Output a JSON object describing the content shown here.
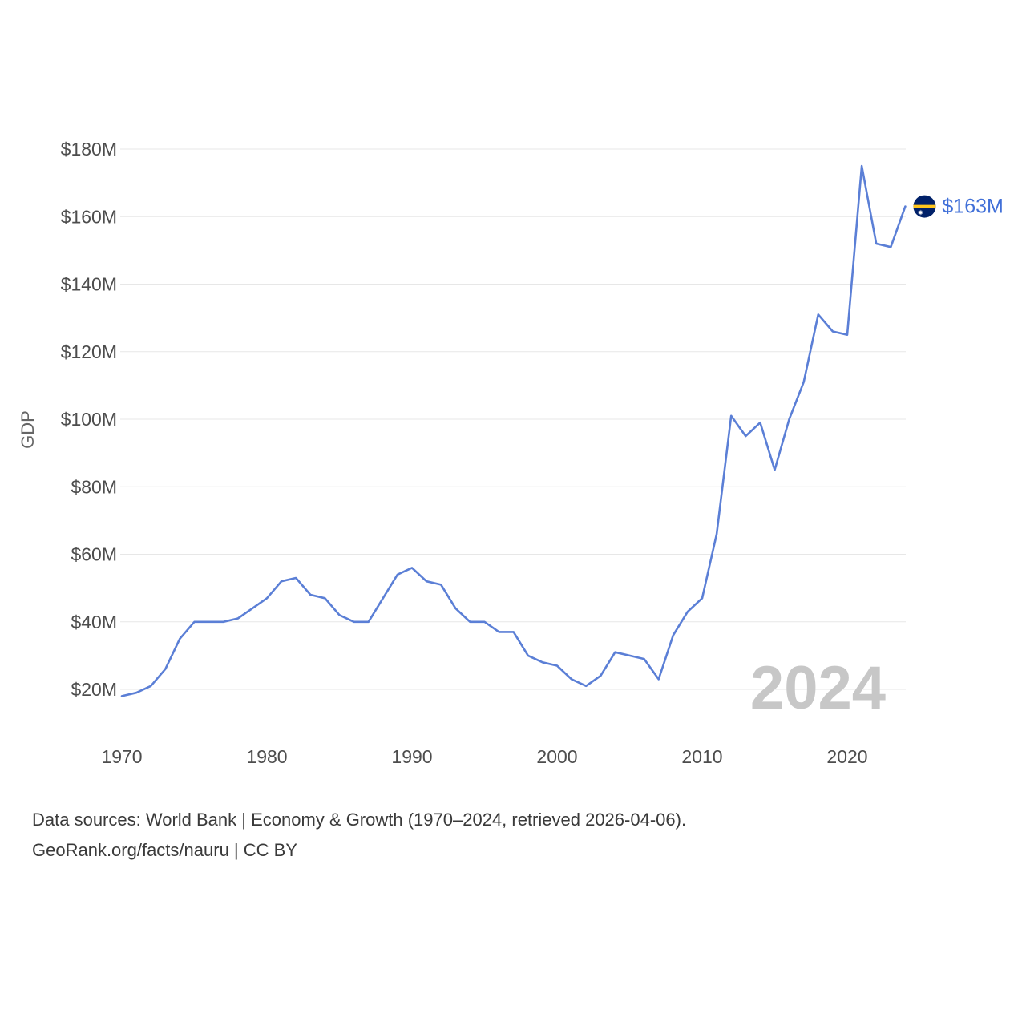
{
  "chart_data": {
    "type": "line",
    "title": "",
    "ylabel": "GDP",
    "xlabel": "",
    "series_name": "GDP of Nauru",
    "x": [
      1970,
      1971,
      1972,
      1973,
      1974,
      1975,
      1976,
      1977,
      1978,
      1979,
      1980,
      1981,
      1982,
      1983,
      1984,
      1985,
      1986,
      1987,
      1988,
      1989,
      1990,
      1991,
      1992,
      1993,
      1994,
      1995,
      1996,
      1997,
      1998,
      1999,
      2000,
      2001,
      2002,
      2003,
      2004,
      2005,
      2006,
      2007,
      2008,
      2009,
      2010,
      2011,
      2012,
      2013,
      2014,
      2015,
      2016,
      2017,
      2018,
      2019,
      2020,
      2021,
      2022,
      2023,
      2024
    ],
    "values": [
      18,
      19,
      21,
      26,
      35,
      40,
      40,
      40,
      41,
      44,
      47,
      52,
      53,
      48,
      47,
      42,
      40,
      40,
      47,
      54,
      56,
      52,
      51,
      44,
      40,
      40,
      37,
      37,
      30,
      28,
      27,
      23,
      21,
      24,
      31,
      30,
      29,
      23,
      36,
      43,
      47,
      66,
      101,
      95,
      99,
      85,
      100,
      111,
      131,
      126,
      125,
      175,
      152,
      151,
      163
    ],
    "unit": "M USD",
    "x_ticks": [
      1970,
      1980,
      1990,
      2000,
      2010,
      2020
    ],
    "y_tick_values": [
      20,
      40,
      60,
      80,
      100,
      120,
      140,
      160,
      180
    ],
    "y_ticks": [
      "$20M",
      "$40M",
      "$60M",
      "$80M",
      "$100M",
      "$120M",
      "$140M",
      "$160M",
      "$180M"
    ],
    "ylim": [
      20,
      180
    ],
    "x_range": [
      1970,
      2024
    ],
    "grid": "horizontal",
    "legend": "none",
    "end_label": "$163M",
    "end_marker": "nauru-flag-icon",
    "watermark": "2024",
    "line_color": "#5b7fd6",
    "end_label_color": "#4170d8",
    "flag_blue": "#012169",
    "flag_yellow": "#ffc61e",
    "flag_star_color": "#ffffff",
    "grid_color": "#e7e7e7",
    "tick_color": "#4d4d4d",
    "watermark_color": "#c7c7c7"
  },
  "footer": {
    "line1": "Data sources: World Bank | Economy & Growth (1970–2024, retrieved 2026-04-06).",
    "line2": "GeoRank.org/facts/nauru | CC BY"
  }
}
